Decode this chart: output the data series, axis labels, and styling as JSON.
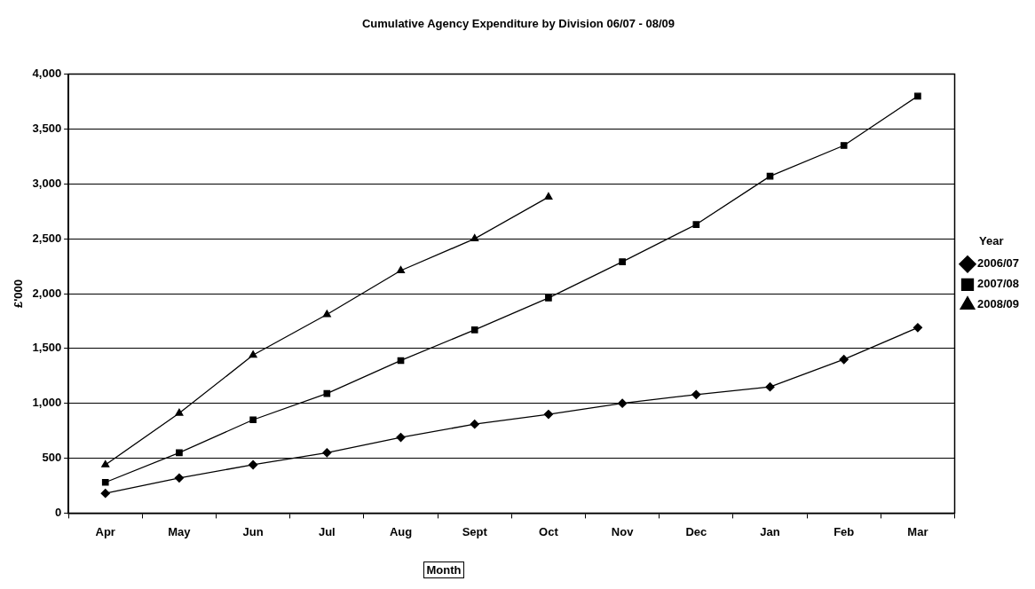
{
  "chart_data": {
    "type": "line",
    "title": "Cumulative Agency Expenditure by Division 06/07 - 08/09",
    "xlabel": "Month",
    "ylabel": "£'000",
    "legend_title": "Year",
    "categories": [
      "Apr",
      "May",
      "Jun",
      "Jul",
      "Aug",
      "Sept",
      "Oct",
      "Nov",
      "Dec",
      "Jan",
      "Feb",
      "Mar"
    ],
    "series": [
      {
        "name": "2006/07",
        "color": "#000000",
        "marker": "diamond",
        "values": [
          180,
          320,
          440,
          550,
          690,
          810,
          900,
          1000,
          1080,
          1150,
          1400,
          1690
        ]
      },
      {
        "name": "2007/08",
        "color": "#000000",
        "marker": "square",
        "values": [
          280,
          550,
          850,
          1090,
          1390,
          1670,
          1960,
          2290,
          2630,
          3070,
          3350,
          3800
        ]
      },
      {
        "name": "2008/09",
        "color": "#000000",
        "marker": "triangle",
        "values": [
          440,
          910,
          1440,
          1810,
          2210,
          2500,
          2880,
          null,
          null,
          null,
          null,
          null
        ]
      }
    ],
    "ylim": [
      0,
      4000
    ],
    "yticks": [
      0,
      {
        "value": 500,
        "label": "500"
      },
      {
        "value": 1000,
        "label": "1,000"
      },
      {
        "value": 1500,
        "label": "1,500"
      },
      {
        "value": 2000,
        "label": "2,000"
      },
      {
        "value": 2500,
        "label": "2,500"
      },
      {
        "value": 3000,
        "label": "3,000"
      },
      {
        "value": 3500,
        "label": "3,500"
      },
      {
        "value": 4000,
        "label": "4,000"
      }
    ],
    "grid": "y",
    "legend": "right",
    "line_style": "solid"
  }
}
